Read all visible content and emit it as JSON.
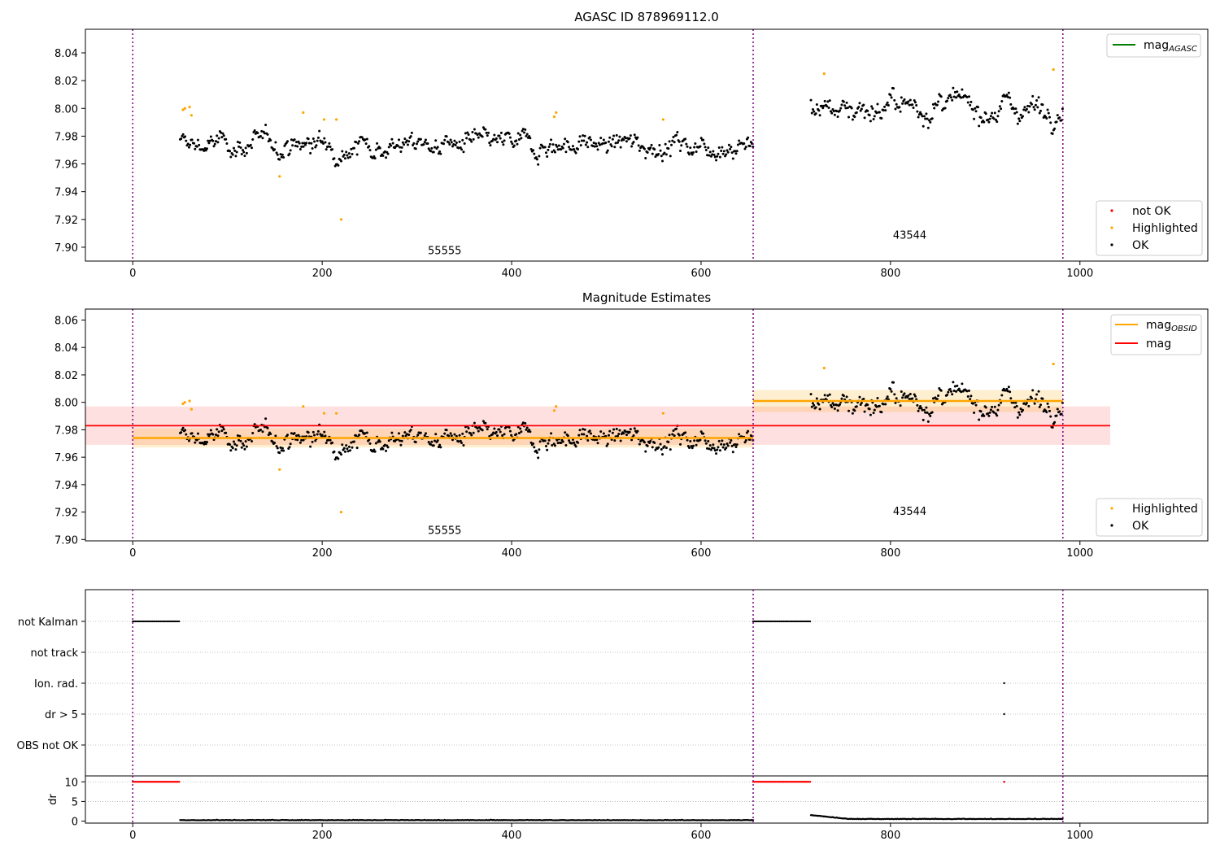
{
  "chart_data": [
    {
      "type": "scatter",
      "title": "AGASC ID 878969112.0",
      "xlabel": "",
      "ylabel": "",
      "xlim": [
        -50,
        1135
      ],
      "ylim": [
        7.89,
        8.057
      ],
      "x_ticks": [
        "0",
        "200",
        "400",
        "600",
        "800",
        "1000"
      ],
      "y_ticks": [
        "7.90",
        "7.92",
        "7.94",
        "7.96",
        "7.98",
        "8.00",
        "8.02",
        "8.04"
      ],
      "grid": false,
      "legend_top": {
        "position": "top-right",
        "entries": [
          {
            "label": "mag",
            "subscript": "AGASC",
            "color": "#008000"
          }
        ]
      },
      "legend_bottom": {
        "position": "bottom-right",
        "entries": [
          {
            "label": "not OK",
            "color": "#ff0000"
          },
          {
            "label": "Highlighted",
            "color": "#ffa500"
          },
          {
            "label": "OK",
            "color": "#000000"
          }
        ]
      },
      "vlines": [
        0,
        655,
        982
      ],
      "vline_color": "#800080",
      "annotations": [
        {
          "text": "55555",
          "x": 327,
          "y": 7.895
        },
        {
          "text": "43544",
          "x": 818,
          "y": 7.906
        }
      ],
      "segments": [
        {
          "x_start": 50,
          "x_end": 655,
          "mean": 7.974,
          "spread": 0.007
        },
        {
          "x_start": 716,
          "x_end": 982,
          "mean": 8.001,
          "spread": 0.008
        }
      ],
      "highlighted_points": [
        [
          53,
          7.999
        ],
        [
          55,
          8.0
        ],
        [
          60,
          8.001
        ],
        [
          62,
          7.995
        ],
        [
          155,
          7.951
        ],
        [
          180,
          7.997
        ],
        [
          202,
          7.992
        ],
        [
          215,
          7.992
        ],
        [
          220,
          7.92
        ],
        [
          445,
          7.994
        ],
        [
          447,
          7.997
        ],
        [
          560,
          7.992
        ],
        [
          730,
          8.025
        ],
        [
          972,
          8.028
        ]
      ]
    },
    {
      "type": "scatter",
      "title": "Magnitude Estimates",
      "xlabel": "",
      "ylabel": "",
      "xlim": [
        -50,
        1135
      ],
      "ylim": [
        7.899,
        8.068
      ],
      "x_ticks": [
        "0",
        "200",
        "400",
        "600",
        "800",
        "1000"
      ],
      "y_ticks": [
        "7.90",
        "7.92",
        "7.94",
        "7.96",
        "7.98",
        "8.00",
        "8.02",
        "8.04",
        "8.06"
      ],
      "grid": false,
      "legend_top": {
        "position": "top-right",
        "entries": [
          {
            "label": "mag",
            "subscript": "OBSID",
            "color": "#ffa500"
          },
          {
            "label": "mag",
            "subscript": "",
            "color": "#ff0000"
          }
        ]
      },
      "legend_bottom": {
        "position": "bottom-right",
        "entries": [
          {
            "label": "Highlighted",
            "color": "#ffa500"
          },
          {
            "label": "OK",
            "color": "#000000"
          }
        ]
      },
      "vlines": [
        0,
        655,
        982
      ],
      "vline_color": "#800080",
      "annotations": [
        {
          "text": "55555",
          "x": 327,
          "y": 7.904
        },
        {
          "text": "43544",
          "x": 818,
          "y": 7.918
        }
      ],
      "mag_line": {
        "value": 7.983,
        "band": [
          7.969,
          7.997
        ],
        "x_range": [
          -50,
          1032
        ],
        "color": "#ff0000"
      },
      "obsid_lines": [
        {
          "x_range": [
            0,
            655
          ],
          "value": 7.974,
          "band": [
            7.967,
            7.981
          ]
        },
        {
          "x_range": [
            655,
            982
          ],
          "value": 8.001,
          "band": [
            7.993,
            8.009
          ]
        }
      ],
      "segments": [
        {
          "x_start": 50,
          "x_end": 655,
          "mean": 7.974,
          "spread": 0.007
        },
        {
          "x_start": 716,
          "x_end": 982,
          "mean": 8.001,
          "spread": 0.008
        }
      ],
      "highlighted_points": [
        [
          53,
          7.999
        ],
        [
          55,
          8.0
        ],
        [
          60,
          8.001
        ],
        [
          62,
          7.995
        ],
        [
          155,
          7.951
        ],
        [
          180,
          7.997
        ],
        [
          202,
          7.992
        ],
        [
          215,
          7.992
        ],
        [
          220,
          7.92
        ],
        [
          445,
          7.994
        ],
        [
          447,
          7.997
        ],
        [
          560,
          7.992
        ],
        [
          730,
          8.025
        ],
        [
          972,
          8.028
        ]
      ]
    },
    {
      "type": "scatter",
      "title": "",
      "xlim": [
        -50,
        1135
      ],
      "flag_categories": [
        "not Kalman",
        "not track",
        "Ion. rad.",
        "dr > 5",
        "OBS not OK"
      ],
      "flag_ranges": [
        {
          "category": "not Kalman",
          "x_ranges": [
            [
              0,
              50
            ],
            [
              655,
              716
            ]
          ]
        },
        {
          "category": "Ion. rad.",
          "x_points": [
            920
          ]
        },
        {
          "category": "dr > 5",
          "x_points": [
            920
          ]
        }
      ],
      "grid": "horizontal dotted",
      "vlines": [
        0,
        655,
        982
      ],
      "vline_color": "#800080"
    },
    {
      "type": "scatter",
      "title": "",
      "ylabel": "dr",
      "xlim": [
        -50,
        1135
      ],
      "ylim": [
        -0.5,
        11.5
      ],
      "x_ticks": [
        "0",
        "200",
        "400",
        "600",
        "800",
        "1000"
      ],
      "y_ticks": [
        "0",
        "5",
        "10"
      ],
      "high_dr": {
        "value": 10,
        "x_ranges": [
          [
            0,
            50
          ],
          [
            655,
            716
          ]
        ],
        "x_points": [
          920
        ],
        "color": "#ff0000"
      },
      "low_dr": [
        {
          "x_start": 50,
          "x_end": 655,
          "value": 0.2
        },
        {
          "x_start": 716,
          "x_end": 982,
          "value": 0.5,
          "start_value": 1.5
        }
      ],
      "vlines": [
        0,
        655,
        982
      ],
      "vline_color": "#800080"
    }
  ]
}
